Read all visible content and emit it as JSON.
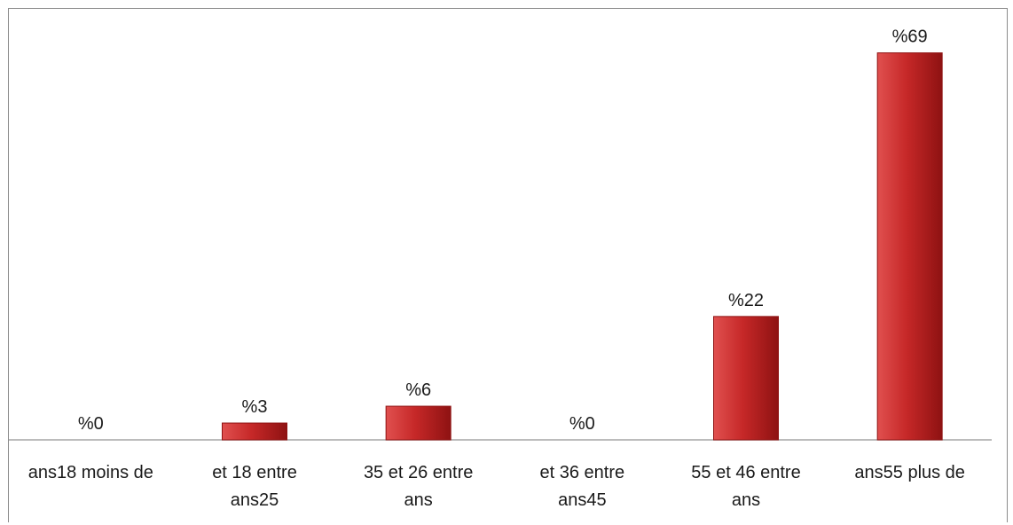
{
  "chart_data": {
    "type": "bar",
    "categories": [
      [
        "ans18 moins de"
      ],
      [
        "et 18 entre",
        "ans25"
      ],
      [
        "35 et 26 entre",
        "ans"
      ],
      [
        "et 36 entre",
        "ans45"
      ],
      [
        "55 et 46 entre",
        "ans"
      ],
      [
        "ans55 plus de"
      ]
    ],
    "values": [
      0,
      3,
      6,
      0,
      22,
      69
    ],
    "value_labels": [
      "%0",
      "%3",
      "%6",
      "%0",
      "%22",
      "%69"
    ],
    "ylim": [
      0,
      74
    ],
    "grid": false,
    "legend": "none",
    "colors": {
      "bar_light": "#e0504f",
      "bar_mid": "#c62828",
      "bar_dark": "#8e1212",
      "axis": "#a6a6a6",
      "text": "#1a1a1a"
    }
  }
}
